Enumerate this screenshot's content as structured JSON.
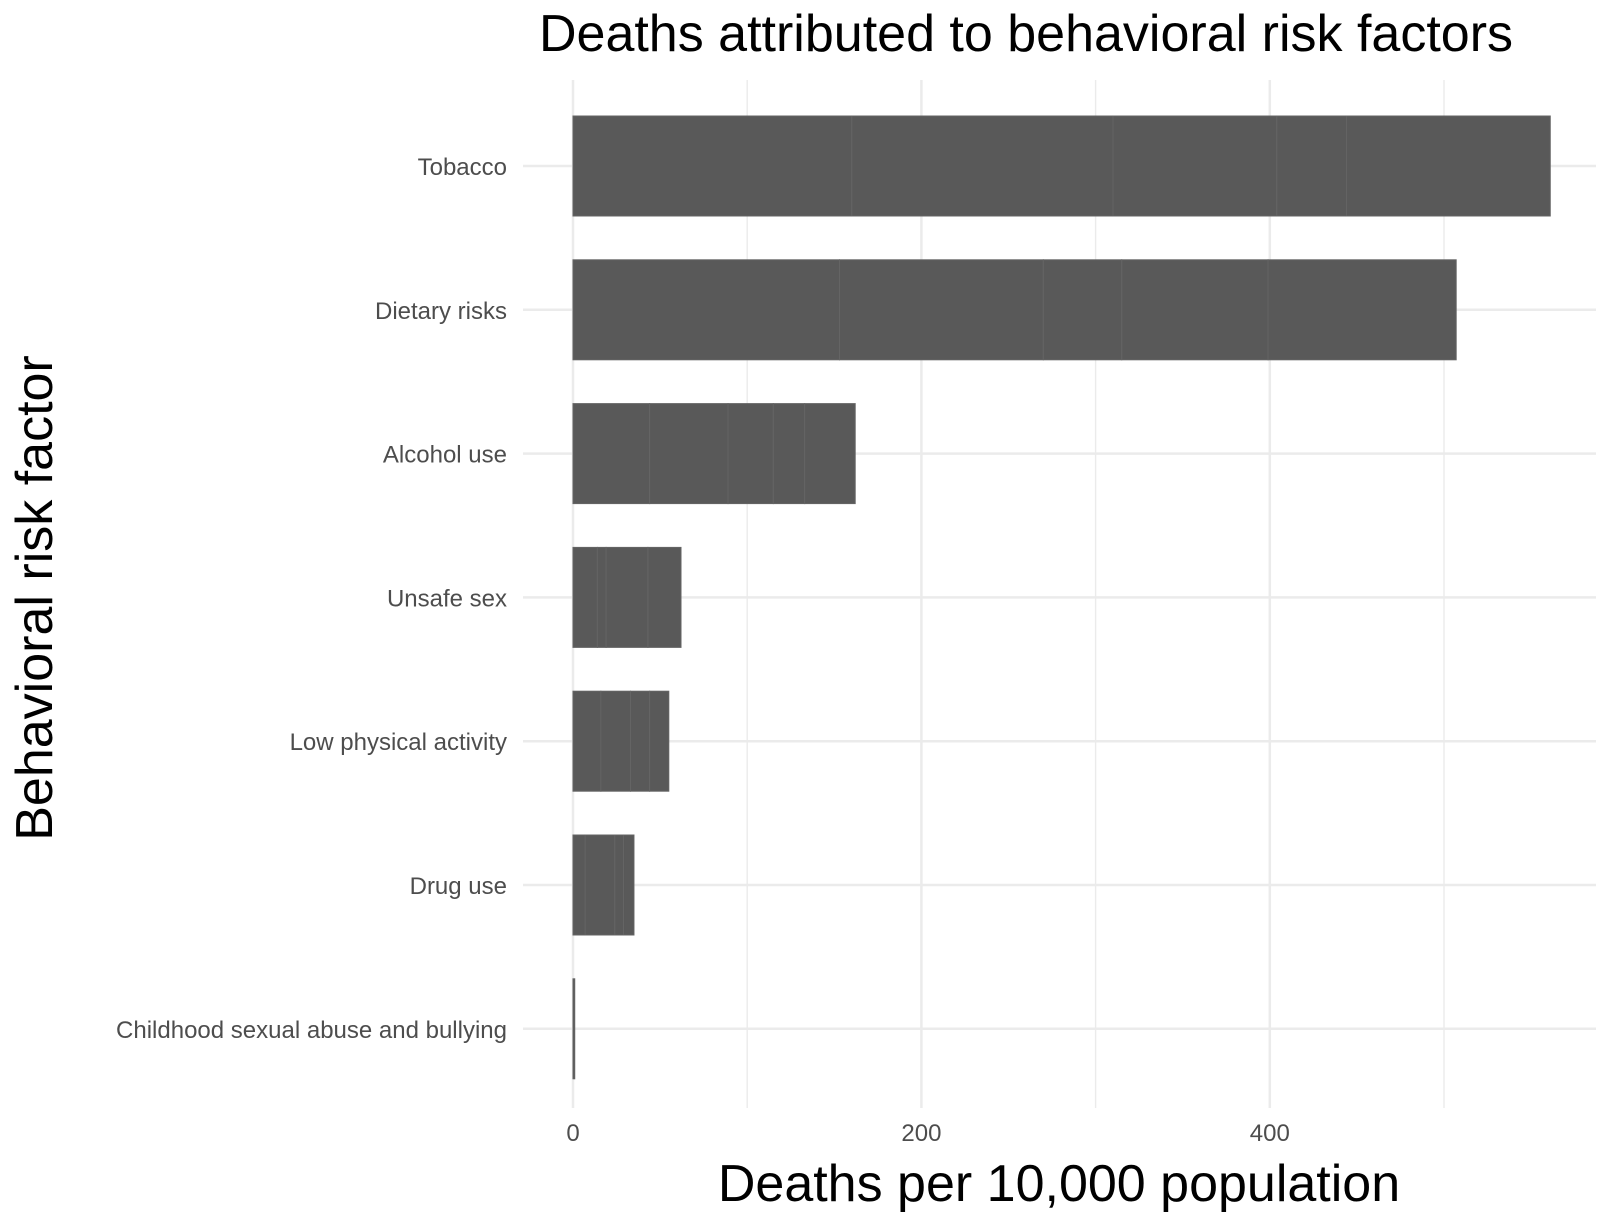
{
  "chart_data": {
    "type": "bar",
    "orientation": "horizontal",
    "stacked": true,
    "title": "Deaths attributed to behavioral risk factors",
    "xlabel": "Deaths per 10,000 population",
    "ylabel": "Behavioral risk factor",
    "xlim": [
      -2,
      570
    ],
    "xticks": [
      0,
      200,
      400
    ],
    "grid": true,
    "legend": "none",
    "bar_color": "#595959",
    "categories": [
      "Tobacco",
      "Dietary risks",
      "Alcohol use",
      "Unsafe sex",
      "Low physical activity",
      "Drug use",
      "Childhood sexual abuse and bullying"
    ],
    "segments": [
      [
        160,
        150,
        94,
        40,
        117
      ],
      [
        153,
        117,
        45,
        84,
        108
      ],
      [
        44,
        45,
        26,
        18,
        29
      ],
      [
        14,
        5,
        24,
        19
      ],
      [
        16,
        17,
        11,
        11
      ],
      [
        7,
        17,
        5,
        6
      ],
      [
        1
      ]
    ],
    "totals": [
      561,
      507,
      162,
      62,
      55,
      35,
      1
    ]
  }
}
